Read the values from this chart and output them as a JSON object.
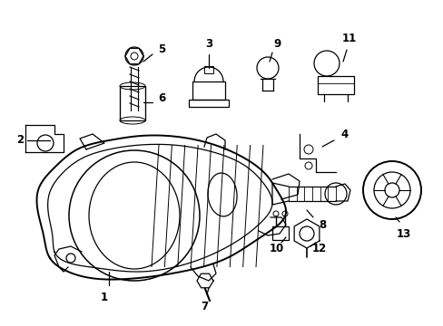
{
  "bg_color": "#ffffff",
  "line_color": "#000000",
  "figsize": [
    4.89,
    3.6
  ],
  "dpi": 100,
  "label_fontsize": 8.5
}
